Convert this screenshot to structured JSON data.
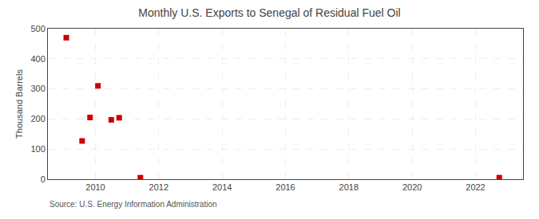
{
  "chart_data": {
    "type": "scatter",
    "title": "Monthly U.S. Exports to Senegal of Residual Fuel Oil",
    "ylabel": "Thousand Barrels",
    "annotations": [
      "Source: U.S. Energy Information Administration"
    ],
    "x": [
      2009.08,
      2009.58,
      2009.83,
      2010.08,
      2010.5,
      2010.75,
      2011.42,
      2022.75
    ],
    "values": [
      470,
      127,
      205,
      310,
      197,
      204,
      5,
      5
    ],
    "color": "#cc0000",
    "marker": "square",
    "xlim": [
      2008.5,
      2023.5
    ],
    "ylim": [
      0,
      500
    ],
    "xticks": [
      2010,
      2012,
      2014,
      2016,
      2018,
      2020,
      2022
    ],
    "yticks": [
      0,
      100,
      200,
      300,
      400,
      500
    ],
    "grid": true
  }
}
